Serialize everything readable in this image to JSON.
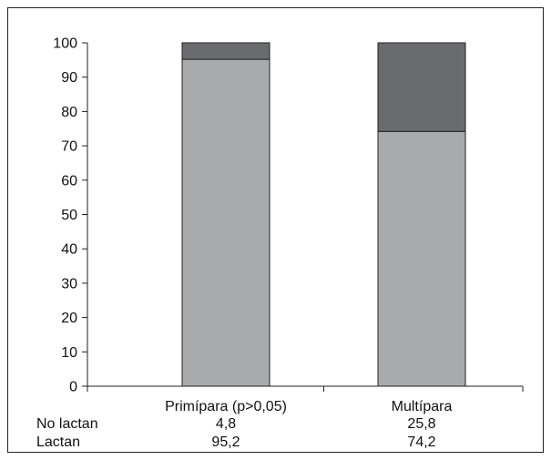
{
  "chart_data": {
    "type": "bar",
    "stacked": true,
    "categories": [
      "Primípara (p>0,05)",
      "Multípara"
    ],
    "series": [
      {
        "name": "Lactan",
        "values": [
          95.2,
          74.2
        ],
        "display": [
          "95,2",
          "74,2"
        ],
        "color": "#a9aaac"
      },
      {
        "name": "No lactan",
        "values": [
          4.8,
          25.8
        ],
        "display": [
          "4,8",
          "25,8"
        ],
        "color": "#6a6b6e"
      }
    ],
    "ylim": [
      0,
      100
    ],
    "yticks": [
      0,
      10,
      20,
      30,
      40,
      50,
      60,
      70,
      80,
      90,
      100
    ],
    "grid": false,
    "legend": "table-below",
    "title": "",
    "xlabel": "",
    "ylabel": ""
  }
}
